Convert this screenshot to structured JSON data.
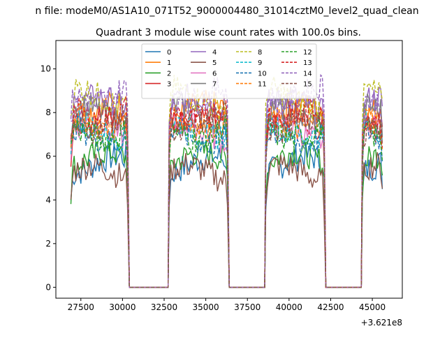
{
  "figure": {
    "suptitle": "n file: modeM0/AS1A10_071T52_9000004480_31014cztM0_level2_quad_clean",
    "title": "Quadrant 3 module wise count rates with 100.0s bins.",
    "offset_label": "+3.621e8"
  },
  "colors": {
    "axes": "#000000",
    "background": "#ffffff",
    "legend_border": "#cccccc"
  },
  "chart_data": {
    "type": "line",
    "title": "Quadrant 3 module wise count rates with 100.0s bins.",
    "xlabel": "",
    "ylabel": "",
    "x_offset": 362100000,
    "xlim": [
      26000,
      46800
    ],
    "ylim": [
      -0.5,
      11.3
    ],
    "xticks": [
      27500,
      30000,
      32500,
      35000,
      37500,
      40000,
      42500,
      45000
    ],
    "xtick_labels": [
      "27500",
      "30000",
      "32500",
      "35000",
      "37500",
      "40000",
      "42500",
      "45000"
    ],
    "yticks": [
      0,
      2,
      4,
      6,
      8,
      10
    ],
    "ytick_labels": [
      "0",
      "2",
      "4",
      "6",
      "8",
      "10"
    ],
    "grid": false,
    "legend_placement": "top-center",
    "legend_columns": 4,
    "segments": [
      {
        "start": 26900,
        "end": 30350
      },
      {
        "start": 32800,
        "end": 36350
      },
      {
        "start": 38600,
        "end": 42150
      },
      {
        "start": 44400,
        "end": 45650
      }
    ],
    "gaps_value": 0,
    "series": [
      {
        "name": "0",
        "color": "#1f77b4",
        "style": "solid",
        "level": 5.6
      },
      {
        "name": "1",
        "color": "#ff7f0e",
        "style": "solid",
        "level": 8.0
      },
      {
        "name": "2",
        "color": "#2ca02c",
        "style": "solid",
        "level": 5.8
      },
      {
        "name": "3",
        "color": "#d62728",
        "style": "solid",
        "level": 7.5
      },
      {
        "name": "4",
        "color": "#9467bd",
        "style": "solid",
        "level": 8.3
      },
      {
        "name": "5",
        "color": "#8c564b",
        "style": "solid",
        "level": 5.2
      },
      {
        "name": "6",
        "color": "#e377c2",
        "style": "solid",
        "level": 7.1
      },
      {
        "name": "7",
        "color": "#7f7f7f",
        "style": "solid",
        "level": 7.9
      },
      {
        "name": "8",
        "color": "#bcbd22",
        "style": "dashed",
        "level": 8.7
      },
      {
        "name": "9",
        "color": "#17becf",
        "style": "dashed",
        "level": 7.3
      },
      {
        "name": "10",
        "color": "#1f77b4",
        "style": "dashed",
        "level": 7.0
      },
      {
        "name": "11",
        "color": "#ff7f0e",
        "style": "dashed",
        "level": 7.7
      },
      {
        "name": "12",
        "color": "#2ca02c",
        "style": "dashed",
        "level": 7.2
      },
      {
        "name": "13",
        "color": "#d62728",
        "style": "dashed",
        "level": 8.1
      },
      {
        "name": "14",
        "color": "#9467bd",
        "style": "dashed",
        "level": 8.9
      },
      {
        "name": "15",
        "color": "#8c564b",
        "style": "dashed",
        "level": 7.6
      }
    ]
  }
}
